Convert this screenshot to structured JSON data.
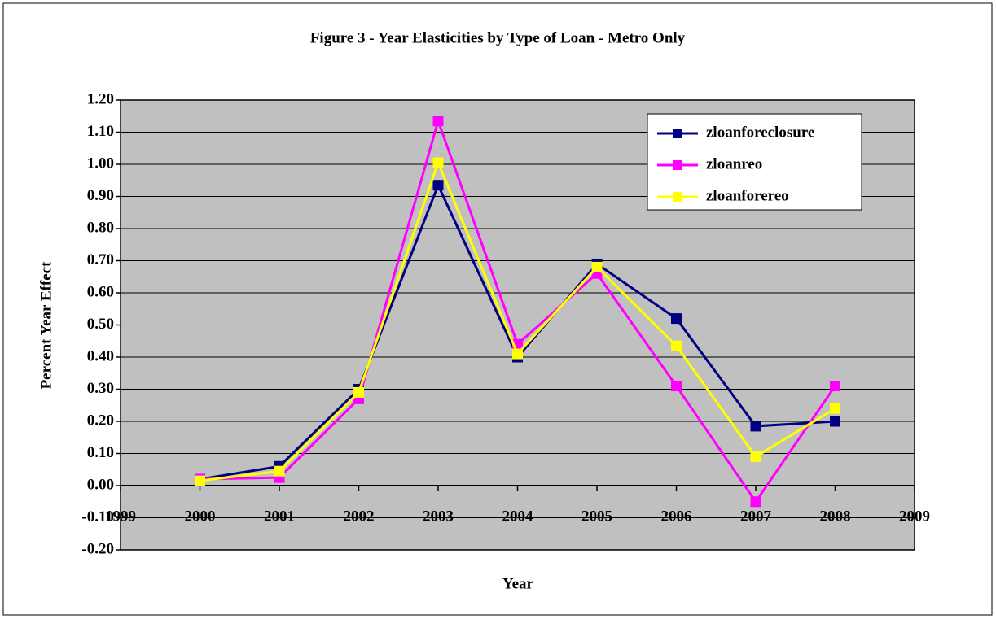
{
  "chart_data": {
    "type": "line",
    "title": "Figure 3 - Year Elasticities by Type of Loan - Metro Only",
    "x_label": "Year",
    "y_label": "Percent Year Effect",
    "x": [
      2000,
      2001,
      2002,
      2003,
      2004,
      2005,
      2006,
      2007,
      2008
    ],
    "series": [
      {
        "name": "zloanforeclosure",
        "color": "#000080",
        "values": [
          0.02,
          0.06,
          0.3,
          0.935,
          0.4,
          0.69,
          0.52,
          0.185,
          0.2
        ]
      },
      {
        "name": "zloanreo",
        "color": "#ff00ff",
        "values": [
          0.02,
          0.025,
          0.27,
          1.135,
          0.44,
          0.66,
          0.31,
          -0.05,
          0.31
        ]
      },
      {
        "name": "zloanforereo",
        "color": "#ffff00",
        "values": [
          0.015,
          0.045,
          0.29,
          1.005,
          0.41,
          0.68,
          0.435,
          0.09,
          0.24
        ]
      }
    ],
    "xlim": [
      1999,
      2009
    ],
    "xticks": [
      1999,
      2000,
      2001,
      2002,
      2003,
      2004,
      2005,
      2006,
      2007,
      2008,
      2009
    ],
    "ylim": [
      -0.2,
      1.2
    ],
    "yticks": [
      {
        "value": -0.2,
        "label": "-0.20"
      },
      {
        "value": -0.1,
        "label": "-0.10"
      },
      {
        "value": 0,
        "label": "0.00"
      },
      {
        "value": 0.1,
        "label": "0.10"
      },
      {
        "value": 0.2,
        "label": "0.20"
      },
      {
        "value": 0.3,
        "label": "0.30"
      },
      {
        "value": 0.4,
        "label": "0.40"
      },
      {
        "value": 0.5,
        "label": "0.50"
      },
      {
        "value": 0.6,
        "label": "0.60"
      },
      {
        "value": 0.7,
        "label": "0.70"
      },
      {
        "value": 0.8,
        "label": "0.80"
      },
      {
        "value": 0.9,
        "label": "0.90"
      },
      {
        "value": 1.0,
        "label": "1.00"
      },
      {
        "value": 1.1,
        "label": "1.10"
      },
      {
        "value": 1.2,
        "label": "1.20"
      }
    ],
    "grid": true,
    "plot_background": "#c0c0c0",
    "legend": "upper right"
  }
}
